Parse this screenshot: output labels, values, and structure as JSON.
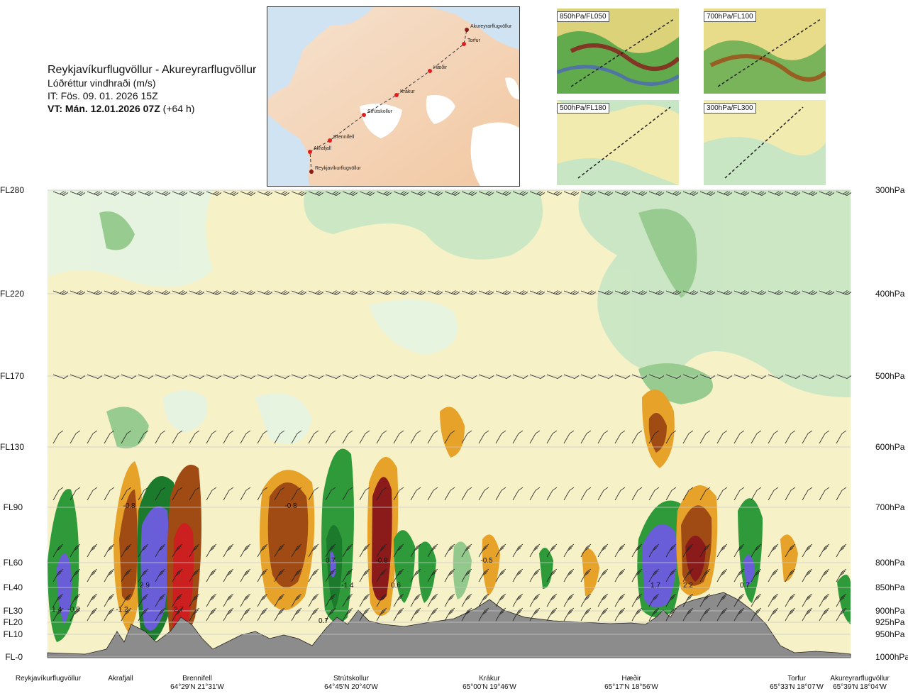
{
  "header": {
    "route": "Reykjavíkurflugvöllur - Akureyrarflugvöllur",
    "variable": "Lóðréttur vindhraði (m/s)",
    "init_time": "IT: Fös. 09. 01. 2026 15Z",
    "valid_time": "VT: Mán. 12.01.2026 07Z",
    "lead_time": "(+64 h)"
  },
  "map": {
    "waypoints": [
      "Reykjavíkurflugvöllur",
      "Akrafjall",
      "Brennifell",
      "Strútskollur",
      "Krákur",
      "Hæðir",
      "Torfur",
      "Akureyrarflugvöllur"
    ]
  },
  "mini_maps": [
    {
      "label": "850hPa/FL050"
    },
    {
      "label": "700hPa/FL100"
    },
    {
      "label": "500hPa/FL180"
    },
    {
      "label": "300hPa/FL300"
    }
  ],
  "chart_data": {
    "type": "heatmap",
    "title": "Reykjavíkurflugvöllur - Akureyrarflugvöllur",
    "variable": "Lóðréttur vindhraði (m/s)",
    "y_levels_fl": [
      {
        "fl": "FL280",
        "hpa": "300hPa"
      },
      {
        "fl": "FL220",
        "hpa": "400hPa"
      },
      {
        "fl": "FL170",
        "hpa": "500hPa"
      },
      {
        "fl": "FL130",
        "hpa": "600hPa"
      },
      {
        "fl": "FL90",
        "hpa": "700hPa"
      },
      {
        "fl": "FL60",
        "hpa": "800hPa"
      },
      {
        "fl": "FL40",
        "hpa": "850hPa"
      },
      {
        "fl": "FL30",
        "hpa": "900hPa"
      },
      {
        "fl": "FL20",
        "hpa": "925hPa"
      },
      {
        "fl": "FL10",
        "hpa": "950hPa"
      },
      {
        "fl": "FL-0",
        "hpa": "1000hPa"
      }
    ],
    "x_locations": [
      {
        "name": "Reykjavíkurflugvöllur",
        "coord": ""
      },
      {
        "name": "Akrafjall",
        "coord": ""
      },
      {
        "name": "Brennifell",
        "coord": "64°29'N 21°31'W"
      },
      {
        "name": "Strútskollur",
        "coord": "64°45'N 20°40'W"
      },
      {
        "name": "Krákur",
        "coord": "65°00'N 19°46'W"
      },
      {
        "name": "Hæðir",
        "coord": "65°17'N 18°56'W"
      },
      {
        "name": "Torfur",
        "coord": "65°33'N 18°07'W"
      },
      {
        "name": "Akureyrarflugvöllur",
        "coord": "65°39'N 18°04'W"
      }
    ],
    "value_labels": [
      "1.4",
      "-0.8",
      "-1.2",
      "-0.8",
      "2.9",
      "2.7",
      "-0.8",
      "0.7",
      "-1.4",
      "-0.8",
      "0.6",
      "0.7",
      "-0.5",
      "1.7",
      "2.2",
      "0.7"
    ],
    "colors": {
      "strong_down": "#8b1a1a",
      "down": "#a04a14",
      "weak_down": "#e7a22a",
      "slight_down": "#f2e07c",
      "neutral_down": "#f7f1c8",
      "neutral_up": "#e6f4e2",
      "slight_up": "#c9e6c4",
      "weak_up": "#93c98c",
      "up": "#2e9a3a",
      "strong_up": "#1b7a2c",
      "very_strong_up": "#6a5ed8",
      "terrain": "#8c8c8c",
      "sea": "#cfe3f2",
      "land": "#f5d8bc"
    }
  }
}
